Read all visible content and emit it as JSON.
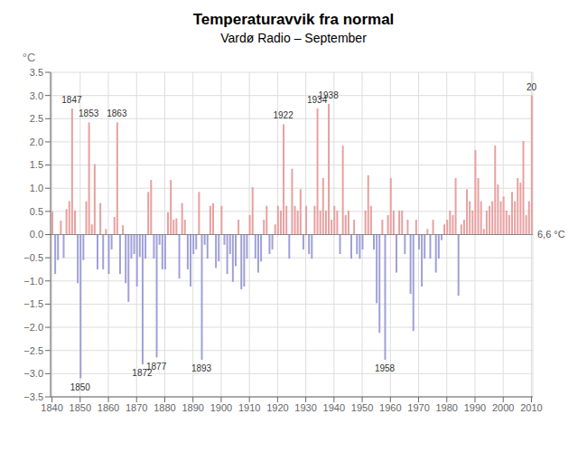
{
  "chart_data": {
    "type": "bar",
    "title": "Temperaturavvik fra normal",
    "subtitle": "Vardø Radio – September",
    "ylabel": "°C",
    "x": [
      1840,
      1841,
      1842,
      1843,
      1844,
      1845,
      1846,
      1847,
      1848,
      1849,
      1850,
      1851,
      1852,
      1853,
      1854,
      1855,
      1856,
      1857,
      1858,
      1859,
      1860,
      1861,
      1862,
      1863,
      1864,
      1865,
      1866,
      1867,
      1868,
      1869,
      1870,
      1871,
      1872,
      1873,
      1874,
      1875,
      1876,
      1877,
      1878,
      1879,
      1880,
      1881,
      1882,
      1883,
      1884,
      1885,
      1886,
      1887,
      1888,
      1889,
      1890,
      1891,
      1892,
      1893,
      1894,
      1895,
      1896,
      1897,
      1898,
      1899,
      1900,
      1901,
      1902,
      1903,
      1904,
      1905,
      1906,
      1907,
      1908,
      1909,
      1910,
      1911,
      1912,
      1913,
      1914,
      1915,
      1916,
      1917,
      1918,
      1919,
      1920,
      1921,
      1922,
      1923,
      1924,
      1925,
      1926,
      1927,
      1928,
      1929,
      1930,
      1931,
      1932,
      1933,
      1934,
      1935,
      1936,
      1937,
      1938,
      1939,
      1940,
      1941,
      1942,
      1943,
      1944,
      1945,
      1946,
      1947,
      1948,
      1949,
      1950,
      1951,
      1952,
      1953,
      1954,
      1955,
      1956,
      1957,
      1958,
      1959,
      1960,
      1961,
      1962,
      1963,
      1964,
      1965,
      1966,
      1967,
      1968,
      1969,
      1970,
      1971,
      1972,
      1973,
      1974,
      1975,
      1976,
      1977,
      1978,
      1979,
      1980,
      1981,
      1982,
      1983,
      1984,
      1985,
      1986,
      1987,
      1988,
      1989,
      1990,
      1991,
      1992,
      1993,
      1994,
      1995,
      1996,
      1997,
      1998,
      1999,
      2000,
      2001,
      2002,
      2003,
      2004,
      2005,
      2006,
      2007,
      2008,
      2009,
      2010
    ],
    "values": [
      0.5,
      -0.85,
      -0.55,
      0.3,
      -0.5,
      0.55,
      0.72,
      2.72,
      0.52,
      -1.05,
      -3.1,
      -0.55,
      0.72,
      2.42,
      0.22,
      1.52,
      -0.75,
      0.68,
      -0.75,
      0.12,
      -0.85,
      -0.32,
      0.38,
      2.42,
      -0.85,
      0.2,
      -1.05,
      -1.45,
      -0.52,
      -0.42,
      -1.12,
      -0.48,
      -2.8,
      -0.52,
      0.92,
      1.18,
      -0.52,
      -2.65,
      -0.22,
      -0.75,
      -0.75,
      0.48,
      1.18,
      0.32,
      0.35,
      -0.95,
      0.68,
      0.32,
      -0.75,
      -1.12,
      -0.42,
      -0.32,
      0.92,
      -2.7,
      -0.22,
      -0.52,
      0.62,
      0.68,
      -0.72,
      -0.58,
      0.62,
      -0.22,
      -0.85,
      -0.42,
      -1.02,
      -0.68,
      0.32,
      -1.18,
      -1.12,
      -0.52,
      0.42,
      1.02,
      -0.52,
      -0.82,
      -0.58,
      0.32,
      0.62,
      -0.42,
      -0.32,
      0.22,
      0.62,
      0.52,
      2.38,
      0.62,
      -0.52,
      1.42,
      0.62,
      0.52,
      0.98,
      -0.32,
      0.62,
      -0.42,
      -0.52,
      0.62,
      2.72,
      0.52,
      1.22,
      0.52,
      2.82,
      0.32,
      0.62,
      0.52,
      -0.42,
      1.92,
      0.42,
      0.52,
      -0.52,
      0.32,
      -0.42,
      -0.52,
      -0.32,
      0.52,
      1.28,
      0.62,
      -0.32,
      -1.48,
      -2.12,
      0.32,
      -2.7,
      0.42,
      1.22,
      0.52,
      -0.82,
      0.52,
      0.52,
      -0.42,
      0.32,
      -1.28,
      -2.08,
      0.32,
      -0.32,
      -1.12,
      -0.52,
      0.12,
      -0.52,
      0.32,
      -0.82,
      -0.52,
      -0.12,
      0.22,
      0.32,
      0.52,
      0.42,
      1.22,
      -1.32,
      0.22,
      0.32,
      0.98,
      0.72,
      0.52,
      1.82,
      1.22,
      0.72,
      0.12,
      0.52,
      0.62,
      0.72,
      1.92,
      1.08,
      0.72,
      0.82,
      0.52,
      0.42,
      0.92,
      0.72,
      1.22,
      1.12,
      2.02,
      0.42,
      0.72,
      3.0
    ],
    "colors": [
      "#e8a0a0",
      "#a0a0d8",
      "#a0a0d8",
      "#e8a0a0",
      "#a0a0d8",
      "#e8a0a0",
      "#e8a0a0",
      "#e8a0a0",
      "#e8a0a0",
      "#a0a0d8",
      "#a0a0d8",
      "#a0a0d8",
      "#e8a0a0",
      "#e8a0a0",
      "#e8a0a0",
      "#e8a0a0",
      "#a0a0d8",
      "#e8a0a0",
      "#a0a0d8",
      "#e8a0a0",
      "#a0a0d8",
      "#a0a0d8",
      "#e8a0a0",
      "#e8a0a0",
      "#a0a0d8",
      "#e8a0a0",
      "#a0a0d8",
      "#a0a0d8",
      "#a0a0d8",
      "#a0a0d8",
      "#a0a0d8",
      "#a0a0d8",
      "#a0a0d8",
      "#a0a0d8",
      "#e8a0a0",
      "#e8a0a0",
      "#a0a0d8",
      "#a0a0d8",
      "#a0a0d8",
      "#a0a0d8",
      "#a0a0d8",
      "#e8a0a0",
      "#e8a0a0",
      "#e8a0a0",
      "#e8a0a0",
      "#a0a0d8",
      "#e8a0a0",
      "#e8a0a0",
      "#a0a0d8",
      "#a0a0d8",
      "#a0a0d8",
      "#a0a0d8",
      "#e8a0a0",
      "#a0a0d8",
      "#a0a0d8",
      "#a0a0d8",
      "#e8a0a0",
      "#e8a0a0",
      "#a0a0d8",
      "#a0a0d8",
      "#e8a0a0",
      "#a0a0d8",
      "#a0a0d8",
      "#a0a0d8",
      "#a0a0d8",
      "#a0a0d8",
      "#e8a0a0",
      "#a0a0d8",
      "#a0a0d8",
      "#a0a0d8",
      "#e8a0a0",
      "#e8a0a0",
      "#a0a0d8",
      "#a0a0d8",
      "#a0a0d8",
      "#e8a0a0",
      "#e8a0a0",
      "#a0a0d8",
      "#a0a0d8",
      "#e8a0a0",
      "#e8a0a0",
      "#e8a0a0",
      "#e8a0a0",
      "#e8a0a0",
      "#a0a0d8",
      "#e8a0a0",
      "#e8a0a0",
      "#e8a0a0",
      "#e8a0a0",
      "#a0a0d8",
      "#e8a0a0",
      "#a0a0d8",
      "#a0a0d8",
      "#e8a0a0",
      "#e8a0a0",
      "#e8a0a0",
      "#e8a0a0",
      "#e8a0a0",
      "#e8a0a0",
      "#e8a0a0",
      "#e8a0a0",
      "#e8a0a0",
      "#a0a0d8",
      "#e8a0a0",
      "#e8a0a0",
      "#e8a0a0",
      "#a0a0d8",
      "#e8a0a0",
      "#a0a0d8",
      "#a0a0d8",
      "#a0a0d8",
      "#e8a0a0",
      "#e8a0a0",
      "#e8a0a0",
      "#a0a0d8",
      "#a0a0d8",
      "#a0a0d8",
      "#e8a0a0",
      "#a0a0d8",
      "#e8a0a0",
      "#e8a0a0",
      "#e8a0a0",
      "#a0a0d8",
      "#e8a0a0",
      "#e8a0a0",
      "#a0a0d8",
      "#e8a0a0",
      "#a0a0d8",
      "#a0a0d8",
      "#e8a0a0",
      "#a0a0d8",
      "#a0a0d8",
      "#a0a0d8",
      "#e8a0a0",
      "#a0a0d8",
      "#e8a0a0",
      "#a0a0d8",
      "#a0a0d8",
      "#a0a0d8",
      "#e8a0a0",
      "#e8a0a0",
      "#e8a0a0",
      "#e8a0a0",
      "#e8a0a0",
      "#a0a0d8",
      "#e8a0a0",
      "#e8a0a0",
      "#e8a0a0",
      "#e8a0a0",
      "#e8a0a0",
      "#e8a0a0",
      "#e8a0a0",
      "#e8a0a0",
      "#e8a0a0",
      "#e8a0a0",
      "#e8a0a0",
      "#e8a0a0",
      "#e8a0a0",
      "#e8a0a0",
      "#e8a0a0",
      "#e8a0a0",
      "#e8a0a0",
      "#e8a0a0",
      "#e8a0a0",
      "#e8a0a0",
      "#e8a0a0",
      "#e8a0a0",
      "#e8a0a0",
      "#e8a0a0",
      "#e8a0a0",
      "#e8a0a0"
    ],
    "xlim": [
      1839.5,
      2010.5
    ],
    "ylim": [
      -3.5,
      3.5
    ],
    "xticks": [
      1840,
      1850,
      1860,
      1870,
      1880,
      1890,
      1900,
      1910,
      1920,
      1930,
      1940,
      1950,
      1960,
      1970,
      1980,
      1990,
      2000,
      2010
    ],
    "yticks": [
      3.5,
      0.5,
      1.5,
      2.5,
      {
        "value": -3.5,
        "label": "−3.5"
      },
      {
        "value": -3.0,
        "label": "−3.0"
      },
      {
        "value": -2.5,
        "label": "−2.5"
      },
      {
        "value": -2.0,
        "label": "−2.0"
      },
      {
        "value": -1.5,
        "label": "−1.5"
      },
      {
        "value": -1.0,
        "label": "−1.0"
      },
      {
        "value": -0.5,
        "label": "−0.5"
      },
      {
        "value": 0.0,
        "label": "0.0"
      },
      {
        "value": 1.0,
        "label": "1.0"
      },
      {
        "value": 2.0,
        "label": "2.0"
      },
      {
        "value": 3.0,
        "label": "3.0"
      }
    ],
    "grid": true,
    "annotations": [
      {
        "text": "1847",
        "x": 1847,
        "y": 2.72
      },
      {
        "text": "1853",
        "x": 1853,
        "y": 2.42
      },
      {
        "text": "1863",
        "x": 1863,
        "y": 2.42
      },
      {
        "text": "1922",
        "x": 1922,
        "y": 2.38
      },
      {
        "text": "1934",
        "x": 1934,
        "y": 2.72
      },
      {
        "text": "1938",
        "x": 1938,
        "y": 2.82
      },
      {
        "text": "1850",
        "x": 1850,
        "y": -3.1
      },
      {
        "text": "1872",
        "x": 1872,
        "y": -2.8
      },
      {
        "text": "1877",
        "x": 1877,
        "y": -2.65
      },
      {
        "text": "1893",
        "x": 1893,
        "y": -2.7
      },
      {
        "text": "1958",
        "x": 1958,
        "y": -2.7
      },
      {
        "text": "20",
        "x": 2010,
        "y": 3.0
      },
      {
        "text": "6,6 °C",
        "y": 0.0
      }
    ]
  }
}
